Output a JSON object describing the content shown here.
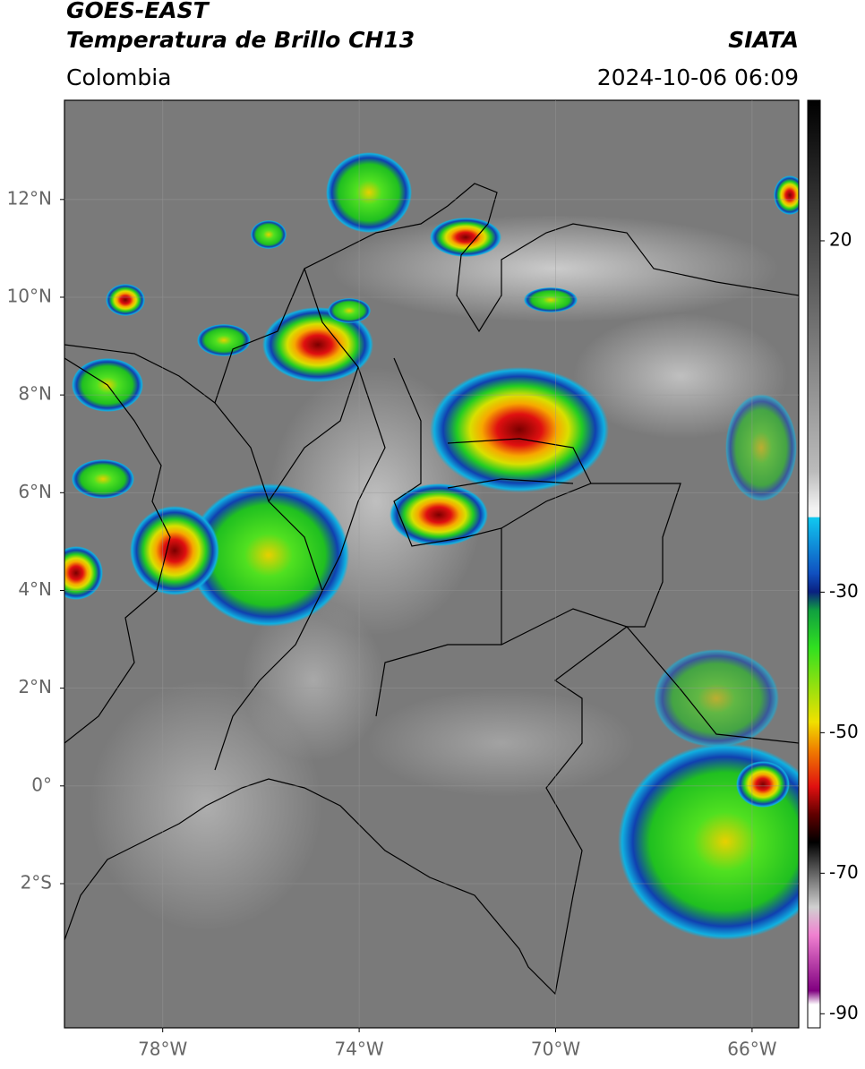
{
  "header": {
    "title": "GOES-EAST",
    "subtitle": "Temperatura de Brillo CH13",
    "region": "Colombia",
    "source": "SIATA",
    "datetime": "2024-10-06 06:09"
  },
  "map": {
    "lonlim": [
      -80,
      -65.05
    ],
    "latlim": [
      -4.95,
      14.03
    ],
    "lon_ticks": [
      {
        "value": -78,
        "label": "78°W"
      },
      {
        "value": -74,
        "label": "74°W"
      },
      {
        "value": -70,
        "label": "70°W"
      },
      {
        "value": -66,
        "label": "66°W"
      }
    ],
    "lat_ticks": [
      {
        "value": 12,
        "label": "12°N"
      },
      {
        "value": 10,
        "label": "10°N"
      },
      {
        "value": 8,
        "label": "8°N"
      },
      {
        "value": 6,
        "label": "6°N"
      },
      {
        "value": 4,
        "label": "4°N"
      },
      {
        "value": 2,
        "label": "2°N"
      },
      {
        "value": 0,
        "label": "0°"
      },
      {
        "value": -2,
        "label": "2°S"
      }
    ],
    "grid": true
  },
  "colorbar": {
    "lim": [
      -92,
      40
    ],
    "ticks": [
      20,
      -30,
      -50,
      -70,
      -90
    ]
  }
}
